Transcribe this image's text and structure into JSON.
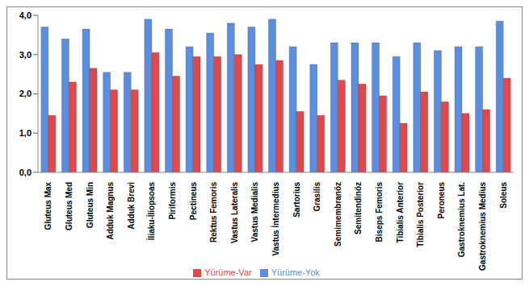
{
  "chart_data": {
    "type": "bar",
    "categories": [
      "Gluteus Max",
      "Gluteus Med",
      "Gluteus Min",
      "Adduk Magnus",
      "Adduk Brevi",
      "İliaku-İliopsoas",
      "Piriformis",
      "Pectineus",
      "Rektus Femoris",
      "Vastus Lateralis",
      "Vastus Medialis",
      "Vastus İntermedius",
      "Sartorius",
      "Grasilis",
      "Semimembranöz",
      "Semitendinöz",
      "Biseps Femoris",
      "Tibialis Anterior",
      "Tibialis Posterior",
      "Peroneus",
      "Gastroknemius Lat.",
      "Gastroknemius Medius",
      "Soleus"
    ],
    "series": [
      {
        "name": "Yürüme-Yok",
        "color": "#5b8ee0",
        "values": [
          3.7,
          3.4,
          3.65,
          2.55,
          2.55,
          3.9,
          3.65,
          3.2,
          3.55,
          3.8,
          3.7,
          3.9,
          3.2,
          2.75,
          3.3,
          3.3,
          3.3,
          2.95,
          3.3,
          3.1,
          3.2,
          3.2,
          3.85
        ]
      },
      {
        "name": "Yürüme-Var",
        "color": "#e0484a",
        "values": [
          1.45,
          2.3,
          2.65,
          2.1,
          2.1,
          3.05,
          2.45,
          2.95,
          2.95,
          3.0,
          2.75,
          2.85,
          1.55,
          1.45,
          2.35,
          2.25,
          1.95,
          1.25,
          2.05,
          1.8,
          1.5,
          1.6,
          2.4
        ]
      }
    ],
    "ylim": [
      0,
      4
    ],
    "yticks": [
      {
        "value": 0,
        "label": "0,0"
      },
      {
        "value": 1,
        "label": "1,0"
      },
      {
        "value": 2,
        "label": "2,0"
      },
      {
        "value": 3,
        "label": "3,0"
      },
      {
        "value": 4,
        "label": "4,0"
      }
    ],
    "grid": false,
    "legend": "bottom"
  }
}
